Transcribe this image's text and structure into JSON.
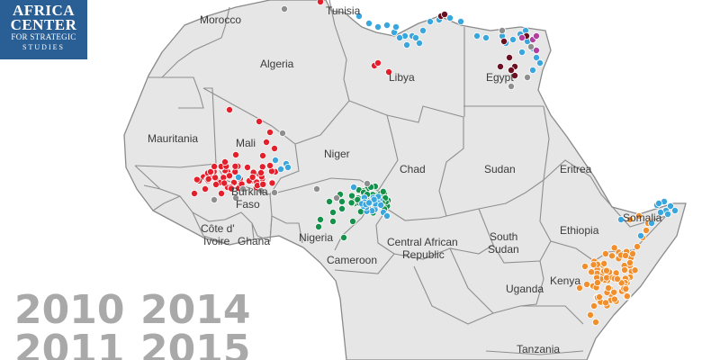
{
  "logo": {
    "line1": "AFRICA",
    "line2": "CENTER",
    "line3": "FOR STRATEGIC",
    "line4": "STUDIES"
  },
  "countries": {
    "tunisia": "Tunisia",
    "morocco": "Morocco",
    "algeria": "Algeria",
    "libya": "Libya",
    "egypt": "Egypt",
    "mauritania": "Mauritania",
    "mali": "Mali",
    "niger": "Niger",
    "chad": "Chad",
    "sudan": "Sudan",
    "eritrea": "Eritrea",
    "burkina": "Burkina",
    "faso": "Faso",
    "nigeria": "Nigeria",
    "somalia": "Somalia",
    "ethiopia": "Ethiopia",
    "cote": "Côte d'",
    "ivoire": "Ivoire",
    "ghana": "Ghana",
    "south": "South",
    "sudan2": "Sudan",
    "central_african": "Central African",
    "republic": "Republic",
    "cameroon": "Cameroon",
    "kenya": "Kenya",
    "uganda": "Uganda",
    "tanzania": "Tanzania"
  },
  "years": {
    "y2010": "2010",
    "y2014": "2014",
    "y2011": "2011",
    "y2015": "2015"
  },
  "colors": {
    "red": "#e41f2b",
    "blue": "#3aa6de",
    "green": "#14914a",
    "orange": "#f18f2c",
    "maroon": "#6b0e1f",
    "purple": "#b23ea0",
    "gray": "#8e8e8e",
    "land": "#e3e3e3",
    "border": "#8d8d8d",
    "logo_bg": "#2a5f96"
  },
  "dot_groups": [
    {
      "name": "red",
      "color": "#e41f2b"
    },
    {
      "name": "blue",
      "color": "#3aa6de"
    },
    {
      "name": "green",
      "color": "#14914a"
    },
    {
      "name": "orange",
      "color": "#f18f2c"
    },
    {
      "name": "maroon",
      "color": "#6b0e1f"
    },
    {
      "name": "purple",
      "color": "#b23ea0"
    },
    {
      "name": "gray",
      "color": "#8e8e8e"
    }
  ]
}
